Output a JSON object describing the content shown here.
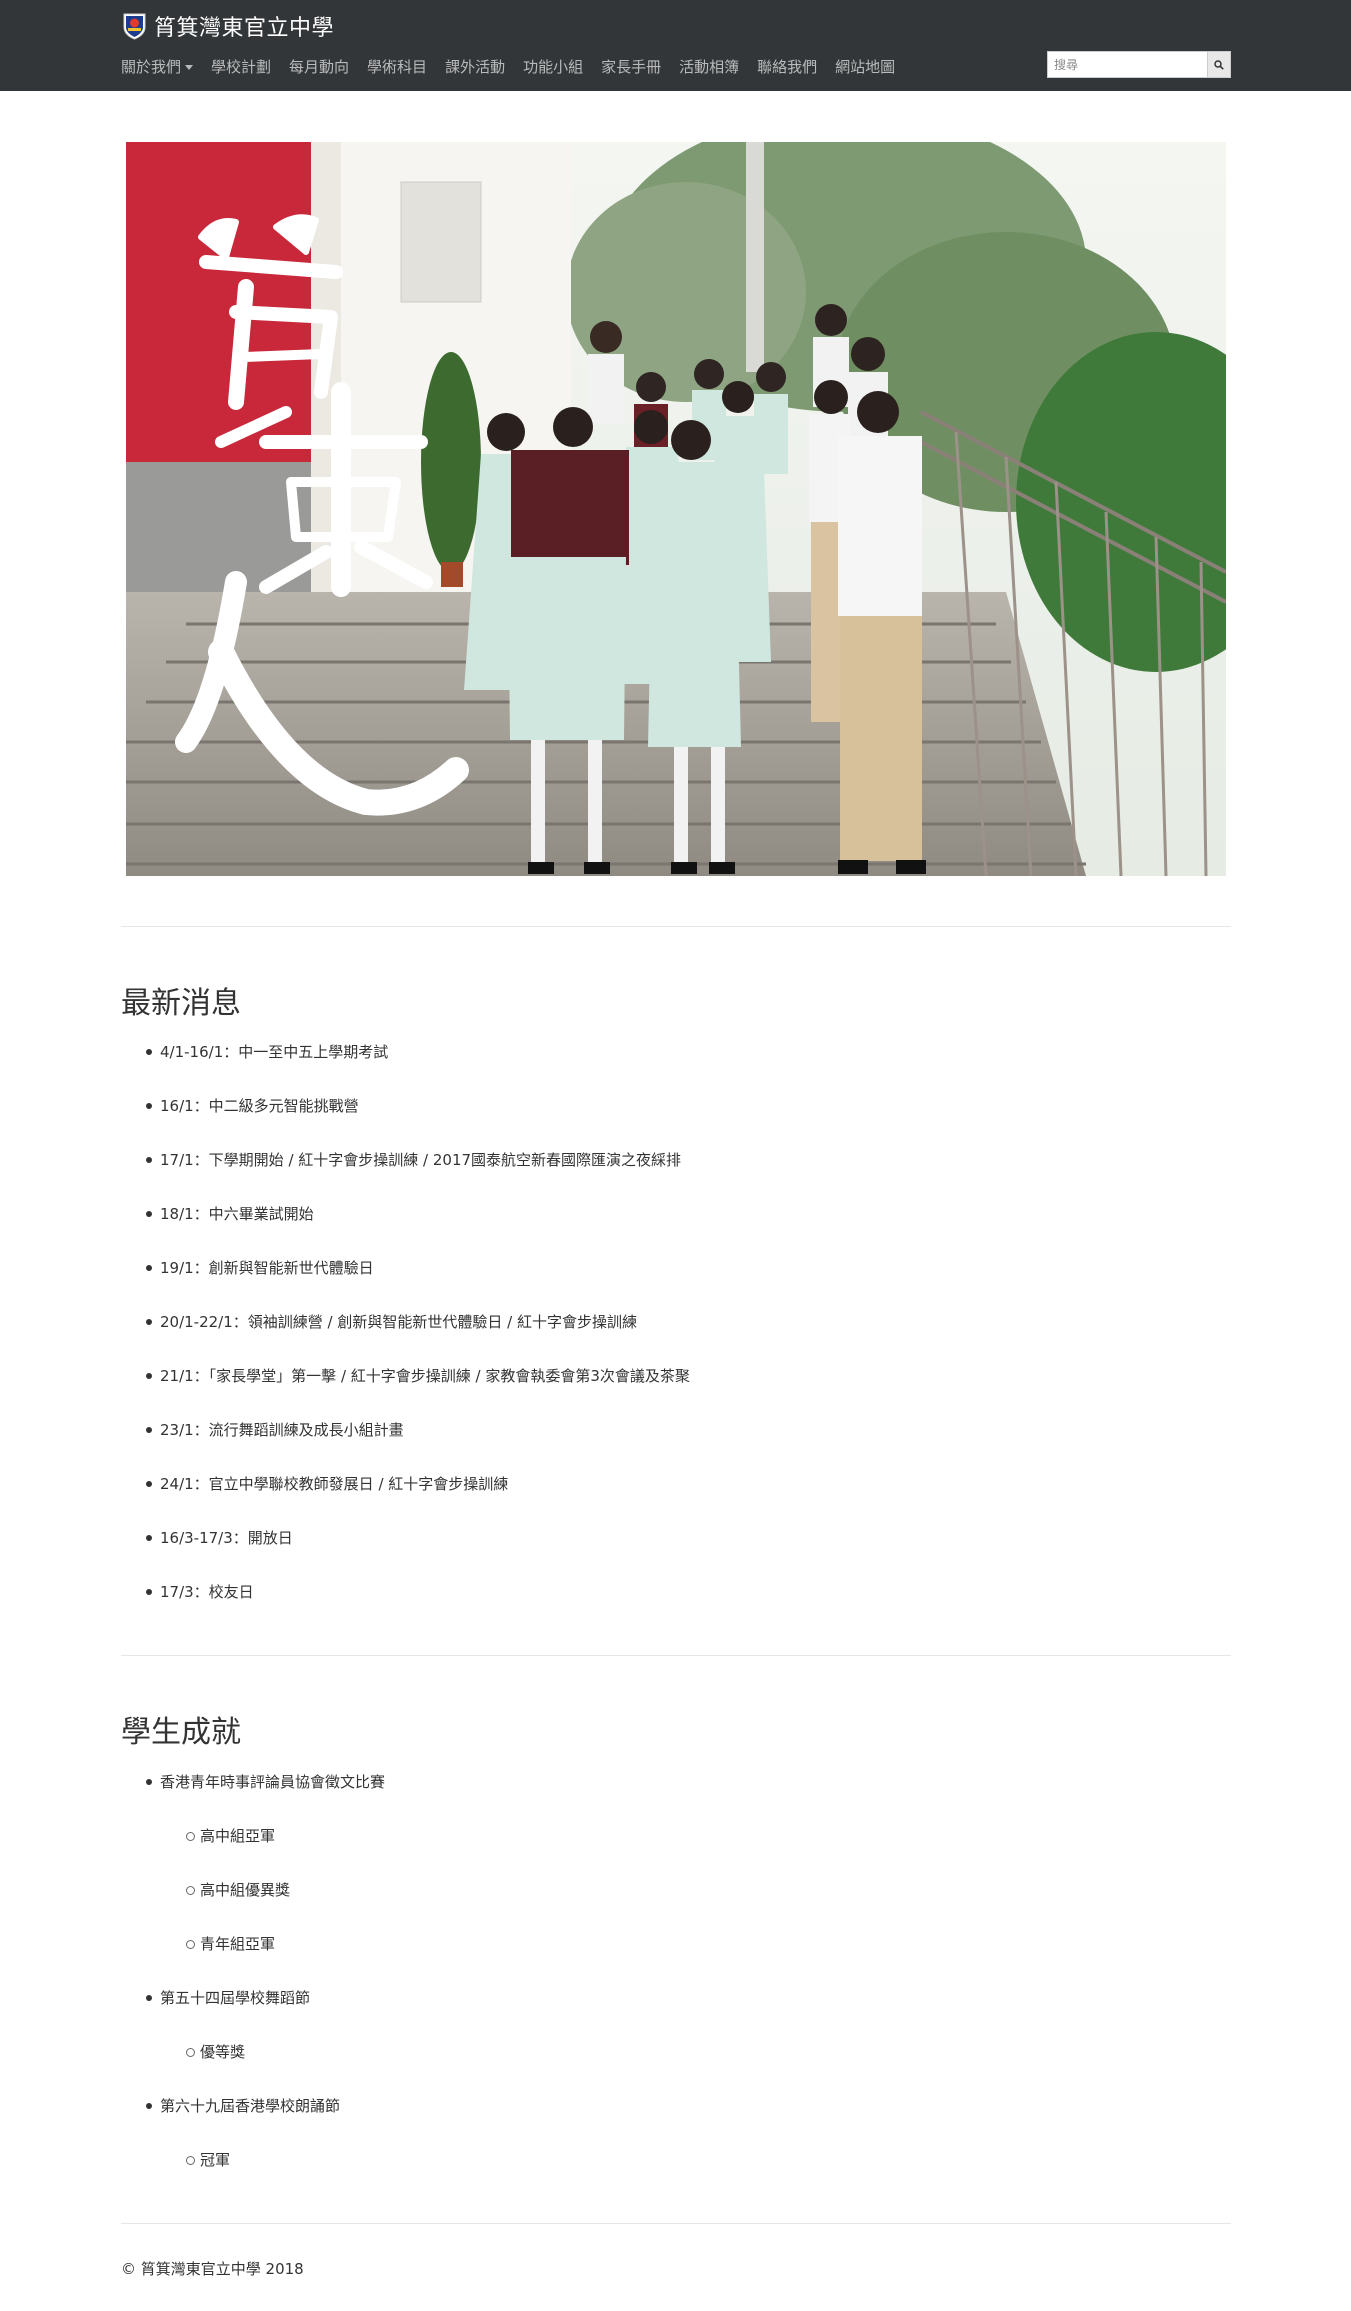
{
  "header": {
    "title": "筲箕灣東官立中學",
    "nav": [
      {
        "label": "關於我們",
        "dropdown": true
      },
      {
        "label": "學校計劃"
      },
      {
        "label": "每月動向"
      },
      {
        "label": "學術科目"
      },
      {
        "label": "課外活動"
      },
      {
        "label": "功能小組"
      },
      {
        "label": "家長手冊"
      },
      {
        "label": "活動相簿"
      },
      {
        "label": "聯絡我們"
      },
      {
        "label": "網站地圖"
      }
    ],
    "search_placeholder": "搜尋",
    "icons": {
      "logo": "school-crest-icon",
      "search": "search-icon",
      "dropdown": "caret-down-icon"
    }
  },
  "hero": {
    "calligraphy": "筲東人",
    "colors": {
      "red_wall": "#c8283a",
      "sky": "#f2f4f0",
      "uniform": "#cfe7df",
      "sweater": "#6b1f26"
    }
  },
  "news": {
    "title": "最新消息",
    "items": [
      "4/1-16/1：中一至中五上學期考試",
      "16/1：中二級多元智能挑戰營",
      "17/1：下學期開始 / 紅十字會步操訓練 / 2017國泰航空新春國際匯演之夜綵排",
      "18/1：中六畢業試開始",
      "19/1：創新與智能新世代體驗日",
      "20/1-22/1：領袖訓練營 / 創新與智能新世代體驗日 / 紅十字會步操訓練",
      "21/1：「家長學堂」第一擊 / 紅十字會步操訓練 / 家教會執委會第3次會議及茶聚",
      "23/1：流行舞蹈訓練及成長小組計畫",
      "24/1：官立中學聯校教師發展日 / 紅十字會步操訓練",
      "16/3-17/3：開放日",
      "17/3：校友日"
    ]
  },
  "achievements": {
    "title": "學生成就",
    "items": [
      {
        "label": "香港青年時事評論員協會徵文比賽",
        "children": [
          "高中組亞軍",
          "高中組優異獎",
          "青年組亞軍"
        ]
      },
      {
        "label": "第五十四屆學校舞蹈節",
        "children": [
          "優等獎"
        ]
      },
      {
        "label": "第六十九屆香港學校朗誦節",
        "children": [
          "冠軍"
        ]
      }
    ]
  },
  "footer": {
    "text": "© 筲箕灣東官立中學 2018"
  }
}
